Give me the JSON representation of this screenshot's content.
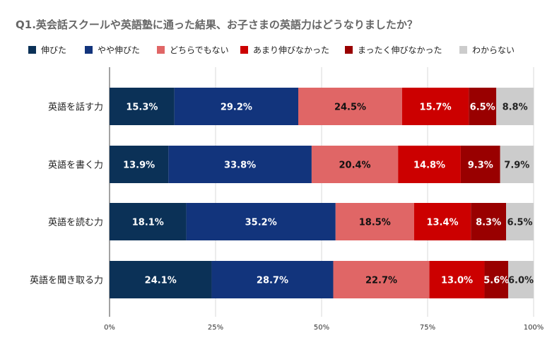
{
  "chart_data": {
    "type": "bar",
    "orientation": "horizontal",
    "stacked": "percent",
    "title": "Q1.英会話スクールや英語塾に通った結果、お子さまの英語力はどうなりましたか？",
    "categories": [
      "英語を話す力",
      "英語を書く力",
      "英語を読む力",
      "英語を聞き取る力"
    ],
    "series": [
      {
        "name": "伸びた",
        "color": "#0b3157",
        "label_color": "#ffffff",
        "values": [
          15.3,
          13.9,
          18.1,
          24.1
        ],
        "labels": [
          "15.3%",
          "13.9%",
          "18.1%",
          "24.1%"
        ]
      },
      {
        "name": "やや伸びた",
        "color": "#12347c",
        "label_color": "#ffffff",
        "values": [
          29.2,
          33.8,
          35.2,
          28.7
        ],
        "labels": [
          "29.2%",
          "33.8%",
          "35.2%",
          "28.7%"
        ]
      },
      {
        "name": "どちらでもない",
        "color": "#e06666",
        "label_color": "#111111",
        "values": [
          24.5,
          20.4,
          18.5,
          22.7
        ],
        "labels": [
          "24.5%",
          "20.4%",
          "18.5%",
          "22.7%"
        ]
      },
      {
        "name": "あまり伸びなかった",
        "color": "#cc0000",
        "label_color": "#ffffff",
        "values": [
          15.7,
          14.8,
          13.4,
          13.0
        ],
        "labels": [
          "15.7%",
          "14.8%",
          "13.4%",
          "13.0%"
        ]
      },
      {
        "name": "まったく伸びなかった",
        "color": "#990000",
        "label_color": "#ffffff",
        "values": [
          6.5,
          9.3,
          8.3,
          5.6
        ],
        "labels": [
          "6.5%",
          "9.3%",
          "8.3%",
          "5.6%"
        ]
      },
      {
        "name": "わからない",
        "color": "#cccccc",
        "label_color": "#222222",
        "values": [
          8.8,
          7.9,
          6.5,
          6.0
        ],
        "labels": [
          "8.8%",
          "7.9%",
          "6.5%",
          "6.0%"
        ]
      }
    ],
    "xlim": [
      0,
      100
    ],
    "x_ticks": [
      0,
      25,
      50,
      75,
      100
    ],
    "x_tick_labels": [
      "0%",
      "25%",
      "50%",
      "75%",
      "100%"
    ],
    "grid": true,
    "legend_position": "top"
  }
}
